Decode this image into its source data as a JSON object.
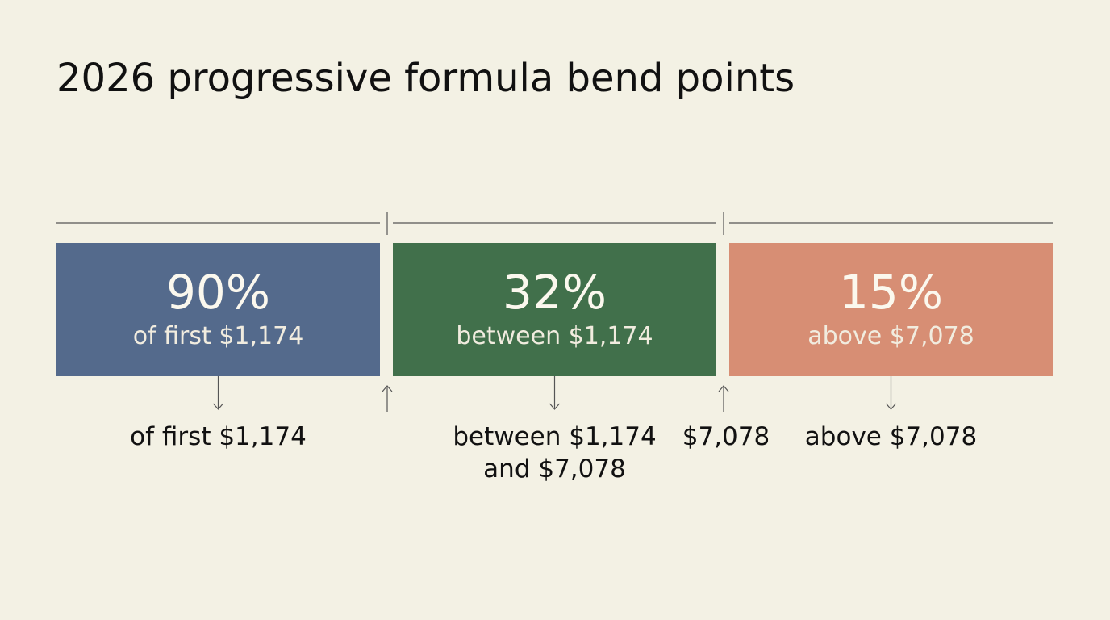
{
  "title": "2026 progressive formula bend points",
  "segments": [
    {
      "percent": "90%",
      "label": "of first $1,174",
      "color": "#546a8c",
      "caption": [
        "of first $1,174"
      ]
    },
    {
      "percent": "32%",
      "label": "between $1,174",
      "color": "#41704b",
      "caption": [
        "between $1,174",
        "and $7,078"
      ]
    },
    {
      "percent": "15%",
      "label": "above $7,078",
      "color": "#d78e74",
      "caption": [
        "above $7,078"
      ]
    }
  ],
  "bend_points": [
    null,
    "$7,078"
  ]
}
